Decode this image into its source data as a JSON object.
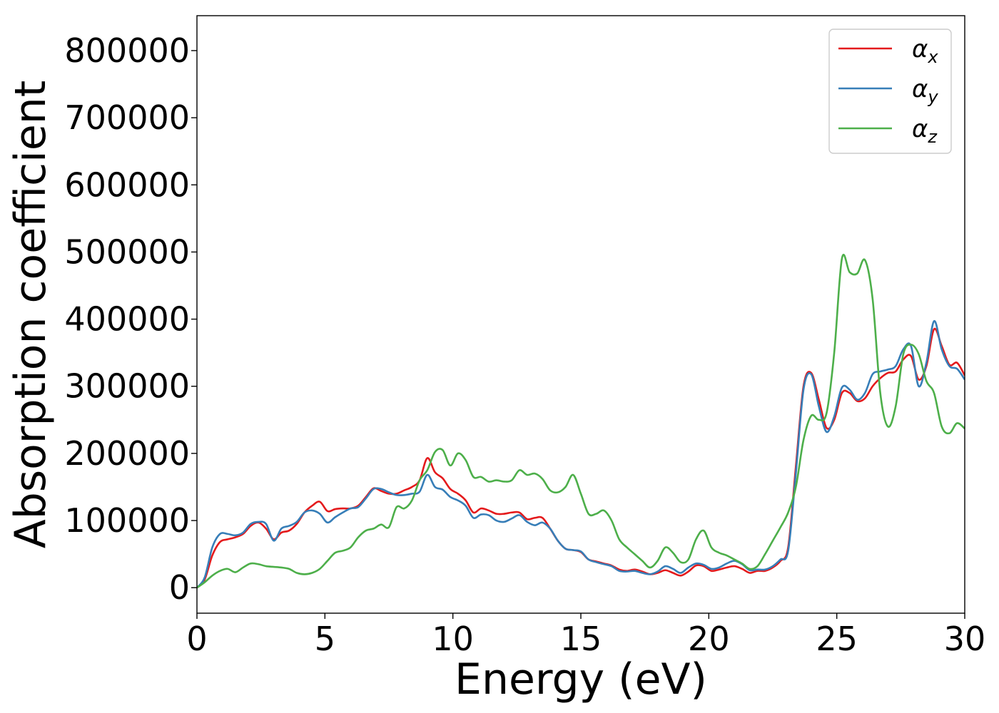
{
  "chart_data": {
    "type": "line",
    "title": "",
    "xlabel": "Energy (eV)",
    "ylabel": "Absorption coefficient",
    "xlim": [
      0,
      30
    ],
    "ylim": [
      -38000,
      852000
    ],
    "x_ticks": [
      0,
      5,
      10,
      15,
      20,
      25,
      30
    ],
    "y_ticks": [
      0,
      100000,
      200000,
      300000,
      400000,
      500000,
      600000,
      700000,
      800000
    ],
    "grid": false,
    "legend_position": "top-right",
    "series": [
      {
        "name": "αx",
        "symbol": "α",
        "subscript": "x",
        "color": "#e41a1c",
        "points": [
          [
            0,
            0
          ],
          [
            0.3,
            12000
          ],
          [
            0.6,
            48000
          ],
          [
            0.9,
            68000
          ],
          [
            1.2,
            72000
          ],
          [
            1.5,
            75000
          ],
          [
            1.8,
            80000
          ],
          [
            2.1,
            92000
          ],
          [
            2.4,
            97000
          ],
          [
            2.7,
            88000
          ],
          [
            3.0,
            72000
          ],
          [
            3.3,
            82000
          ],
          [
            3.6,
            85000
          ],
          [
            3.9,
            95000
          ],
          [
            4.2,
            112000
          ],
          [
            4.5,
            122000
          ],
          [
            4.8,
            128000
          ],
          [
            5.1,
            114000
          ],
          [
            5.4,
            117000
          ],
          [
            5.7,
            118000
          ],
          [
            6.0,
            118000
          ],
          [
            6.3,
            122000
          ],
          [
            6.6,
            135000
          ],
          [
            6.9,
            148000
          ],
          [
            7.2,
            144000
          ],
          [
            7.5,
            140000
          ],
          [
            7.8,
            140000
          ],
          [
            8.1,
            145000
          ],
          [
            8.4,
            150000
          ],
          [
            8.7,
            160000
          ],
          [
            9.0,
            193000
          ],
          [
            9.3,
            172000
          ],
          [
            9.6,
            163000
          ],
          [
            9.9,
            147000
          ],
          [
            10.2,
            140000
          ],
          [
            10.5,
            130000
          ],
          [
            10.8,
            112000
          ],
          [
            11.1,
            118000
          ],
          [
            11.4,
            115000
          ],
          [
            11.7,
            110000
          ],
          [
            12.0,
            110000
          ],
          [
            12.3,
            112000
          ],
          [
            12.6,
            112000
          ],
          [
            12.9,
            102000
          ],
          [
            13.2,
            104000
          ],
          [
            13.5,
            104000
          ],
          [
            13.8,
            88000
          ],
          [
            14.1,
            70000
          ],
          [
            14.4,
            58000
          ],
          [
            14.7,
            56000
          ],
          [
            15.0,
            53000
          ],
          [
            15.3,
            42000
          ],
          [
            15.6,
            39000
          ],
          [
            15.9,
            36000
          ],
          [
            16.2,
            33000
          ],
          [
            16.5,
            27000
          ],
          [
            16.8,
            25000
          ],
          [
            17.1,
            27000
          ],
          [
            17.4,
            24000
          ],
          [
            17.7,
            20000
          ],
          [
            18.0,
            22000
          ],
          [
            18.3,
            26000
          ],
          [
            18.6,
            22000
          ],
          [
            18.9,
            18000
          ],
          [
            19.2,
            24000
          ],
          [
            19.5,
            33000
          ],
          [
            19.8,
            32000
          ],
          [
            20.1,
            25000
          ],
          [
            20.4,
            27000
          ],
          [
            20.7,
            30000
          ],
          [
            21.0,
            32000
          ],
          [
            21.3,
            28000
          ],
          [
            21.6,
            22000
          ],
          [
            21.9,
            25000
          ],
          [
            22.2,
            25000
          ],
          [
            22.5,
            30000
          ],
          [
            22.8,
            40000
          ],
          [
            23.1,
            60000
          ],
          [
            23.4,
            180000
          ],
          [
            23.7,
            300000
          ],
          [
            24.0,
            320000
          ],
          [
            24.3,
            280000
          ],
          [
            24.6,
            238000
          ],
          [
            24.9,
            250000
          ],
          [
            25.2,
            290000
          ],
          [
            25.5,
            290000
          ],
          [
            25.8,
            278000
          ],
          [
            26.1,
            282000
          ],
          [
            26.4,
            300000
          ],
          [
            26.7,
            312000
          ],
          [
            27.0,
            320000
          ],
          [
            27.3,
            322000
          ],
          [
            27.6,
            340000
          ],
          [
            27.9,
            345000
          ],
          [
            28.2,
            310000
          ],
          [
            28.5,
            330000
          ],
          [
            28.8,
            385000
          ],
          [
            29.1,
            360000
          ],
          [
            29.4,
            332000
          ],
          [
            29.7,
            335000
          ],
          [
            30.0,
            316000
          ]
        ]
      },
      {
        "name": "αy",
        "symbol": "α",
        "subscript": "y",
        "color": "#377eb8",
        "points": [
          [
            0,
            0
          ],
          [
            0.3,
            15000
          ],
          [
            0.6,
            60000
          ],
          [
            0.9,
            80000
          ],
          [
            1.2,
            80000
          ],
          [
            1.5,
            78000
          ],
          [
            1.8,
            82000
          ],
          [
            2.1,
            95000
          ],
          [
            2.4,
            98000
          ],
          [
            2.7,
            95000
          ],
          [
            3.0,
            70000
          ],
          [
            3.3,
            88000
          ],
          [
            3.6,
            92000
          ],
          [
            3.9,
            98000
          ],
          [
            4.2,
            112000
          ],
          [
            4.5,
            115000
          ],
          [
            4.8,
            110000
          ],
          [
            5.1,
            97000
          ],
          [
            5.4,
            105000
          ],
          [
            5.7,
            112000
          ],
          [
            6.0,
            118000
          ],
          [
            6.3,
            120000
          ],
          [
            6.6,
            133000
          ],
          [
            6.9,
            147000
          ],
          [
            7.2,
            147000
          ],
          [
            7.5,
            142000
          ],
          [
            7.8,
            138000
          ],
          [
            8.1,
            138000
          ],
          [
            8.4,
            140000
          ],
          [
            8.7,
            143000
          ],
          [
            9.0,
            168000
          ],
          [
            9.3,
            150000
          ],
          [
            9.6,
            146000
          ],
          [
            9.9,
            135000
          ],
          [
            10.2,
            130000
          ],
          [
            10.5,
            122000
          ],
          [
            10.8,
            104000
          ],
          [
            11.1,
            109000
          ],
          [
            11.4,
            108000
          ],
          [
            11.7,
            100000
          ],
          [
            12.0,
            98000
          ],
          [
            12.3,
            103000
          ],
          [
            12.6,
            108000
          ],
          [
            12.9,
            98000
          ],
          [
            13.2,
            93000
          ],
          [
            13.5,
            97000
          ],
          [
            13.8,
            88000
          ],
          [
            14.1,
            70000
          ],
          [
            14.4,
            58000
          ],
          [
            14.7,
            56000
          ],
          [
            15.0,
            54000
          ],
          [
            15.3,
            42000
          ],
          [
            15.6,
            38000
          ],
          [
            15.9,
            35000
          ],
          [
            16.2,
            32000
          ],
          [
            16.5,
            25000
          ],
          [
            16.8,
            24000
          ],
          [
            17.1,
            25000
          ],
          [
            17.4,
            22000
          ],
          [
            17.7,
            20000
          ],
          [
            18.0,
            24000
          ],
          [
            18.3,
            32000
          ],
          [
            18.6,
            28000
          ],
          [
            18.9,
            22000
          ],
          [
            19.2,
            30000
          ],
          [
            19.5,
            36000
          ],
          [
            19.8,
            34000
          ],
          [
            20.1,
            28000
          ],
          [
            20.4,
            30000
          ],
          [
            20.7,
            36000
          ],
          [
            21.0,
            40000
          ],
          [
            21.3,
            35000
          ],
          [
            21.6,
            26000
          ],
          [
            21.9,
            27000
          ],
          [
            22.2,
            27000
          ],
          [
            22.5,
            32000
          ],
          [
            22.8,
            42000
          ],
          [
            23.1,
            55000
          ],
          [
            23.4,
            170000
          ],
          [
            23.7,
            295000
          ],
          [
            24.0,
            318000
          ],
          [
            24.3,
            270000
          ],
          [
            24.6,
            232000
          ],
          [
            24.9,
            255000
          ],
          [
            25.2,
            298000
          ],
          [
            25.5,
            295000
          ],
          [
            25.8,
            280000
          ],
          [
            26.1,
            290000
          ],
          [
            26.4,
            318000
          ],
          [
            26.7,
            322000
          ],
          [
            27.0,
            325000
          ],
          [
            27.3,
            330000
          ],
          [
            27.6,
            355000
          ],
          [
            27.9,
            360000
          ],
          [
            28.2,
            300000
          ],
          [
            28.5,
            335000
          ],
          [
            28.8,
            397000
          ],
          [
            29.1,
            355000
          ],
          [
            29.4,
            330000
          ],
          [
            29.7,
            326000
          ],
          [
            30.0,
            310000
          ]
        ]
      },
      {
        "name": "αz",
        "symbol": "α",
        "subscript": "z",
        "color": "#4daf4a",
        "points": [
          [
            0,
            0
          ],
          [
            0.3,
            8000
          ],
          [
            0.6,
            18000
          ],
          [
            0.9,
            25000
          ],
          [
            1.2,
            28000
          ],
          [
            1.5,
            23000
          ],
          [
            1.8,
            30000
          ],
          [
            2.1,
            36000
          ],
          [
            2.4,
            35000
          ],
          [
            2.7,
            32000
          ],
          [
            3.0,
            31000
          ],
          [
            3.3,
            30000
          ],
          [
            3.6,
            28000
          ],
          [
            3.9,
            22000
          ],
          [
            4.2,
            20000
          ],
          [
            4.5,
            22000
          ],
          [
            4.8,
            28000
          ],
          [
            5.1,
            40000
          ],
          [
            5.4,
            52000
          ],
          [
            5.7,
            55000
          ],
          [
            6.0,
            60000
          ],
          [
            6.3,
            75000
          ],
          [
            6.6,
            85000
          ],
          [
            6.9,
            88000
          ],
          [
            7.2,
            94000
          ],
          [
            7.5,
            90000
          ],
          [
            7.8,
            120000
          ],
          [
            8.1,
            118000
          ],
          [
            8.4,
            130000
          ],
          [
            8.7,
            160000
          ],
          [
            9.0,
            175000
          ],
          [
            9.3,
            202000
          ],
          [
            9.6,
            205000
          ],
          [
            9.9,
            182000
          ],
          [
            10.2,
            200000
          ],
          [
            10.5,
            190000
          ],
          [
            10.8,
            165000
          ],
          [
            11.1,
            165000
          ],
          [
            11.4,
            158000
          ],
          [
            11.7,
            160000
          ],
          [
            12.0,
            158000
          ],
          [
            12.3,
            160000
          ],
          [
            12.6,
            175000
          ],
          [
            12.9,
            168000
          ],
          [
            13.2,
            170000
          ],
          [
            13.5,
            162000
          ],
          [
            13.8,
            145000
          ],
          [
            14.1,
            142000
          ],
          [
            14.4,
            150000
          ],
          [
            14.7,
            168000
          ],
          [
            15.0,
            140000
          ],
          [
            15.3,
            110000
          ],
          [
            15.6,
            110000
          ],
          [
            15.9,
            115000
          ],
          [
            16.2,
            100000
          ],
          [
            16.5,
            72000
          ],
          [
            16.8,
            60000
          ],
          [
            17.1,
            50000
          ],
          [
            17.4,
            40000
          ],
          [
            17.7,
            30000
          ],
          [
            18.0,
            40000
          ],
          [
            18.3,
            60000
          ],
          [
            18.6,
            52000
          ],
          [
            18.9,
            38000
          ],
          [
            19.2,
            42000
          ],
          [
            19.5,
            72000
          ],
          [
            19.8,
            85000
          ],
          [
            20.1,
            60000
          ],
          [
            20.4,
            52000
          ],
          [
            20.7,
            48000
          ],
          [
            21.0,
            42000
          ],
          [
            21.3,
            36000
          ],
          [
            21.6,
            28000
          ],
          [
            21.9,
            32000
          ],
          [
            22.2,
            50000
          ],
          [
            22.5,
            70000
          ],
          [
            22.8,
            90000
          ],
          [
            23.1,
            112000
          ],
          [
            23.4,
            150000
          ],
          [
            23.7,
            220000
          ],
          [
            24.0,
            256000
          ],
          [
            24.3,
            250000
          ],
          [
            24.6,
            260000
          ],
          [
            24.9,
            350000
          ],
          [
            25.2,
            490000
          ],
          [
            25.5,
            470000
          ],
          [
            25.8,
            468000
          ],
          [
            26.1,
            488000
          ],
          [
            26.4,
            430000
          ],
          [
            26.7,
            290000
          ],
          [
            27.0,
            240000
          ],
          [
            27.3,
            270000
          ],
          [
            27.6,
            348000
          ],
          [
            27.9,
            362000
          ],
          [
            28.2,
            348000
          ],
          [
            28.5,
            308000
          ],
          [
            28.8,
            290000
          ],
          [
            29.1,
            240000
          ],
          [
            29.4,
            230000
          ],
          [
            29.7,
            245000
          ],
          [
            30.0,
            237000
          ]
        ]
      }
    ]
  }
}
